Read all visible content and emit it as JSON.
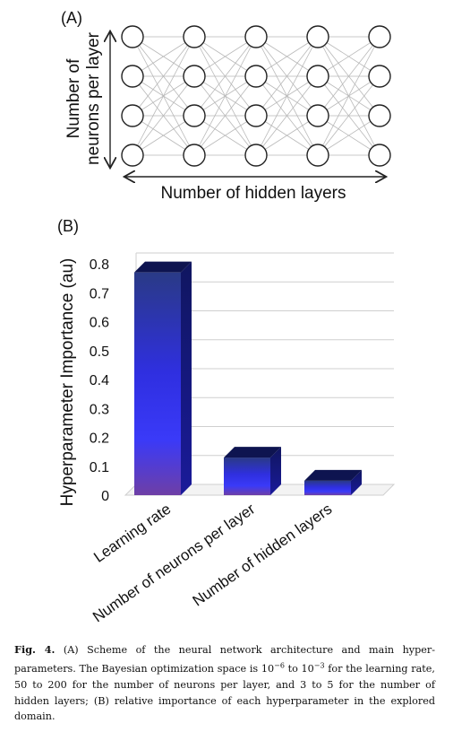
{
  "panel_a": {
    "label": "(A)",
    "y_text": [
      "Number of",
      "neurons per layer"
    ],
    "x_text": "Number of hidden layers",
    "layers": 5,
    "neurons_per_layer": 4
  },
  "panel_b": {
    "label": "(B)"
  },
  "chart_data": {
    "type": "bar",
    "categories": [
      "Learning rate",
      "Number of neurons per layer",
      "Number of hidden layers"
    ],
    "values": [
      0.77,
      0.13,
      0.05
    ],
    "ylabel": "Hyperparameter Importance (au)",
    "xlabel": "",
    "ylim": [
      0,
      0.8
    ],
    "yticks": [
      "0",
      "0.1",
      "0.2",
      "0.3",
      "0.4",
      "0.5",
      "0.6",
      "0.7",
      "0.8"
    ],
    "grid": true,
    "style": "3d",
    "colors": {
      "top": "#3e4aa8",
      "bottom": "#6b3fa6",
      "side": "#141a72",
      "mid": "#3434f0"
    }
  },
  "caption": {
    "fig_label": "Fig. 4.",
    "text": "(A) Scheme of the neural network architecture and main hyper-parameters. The Bayesian optimization space is 10^−6 to 10^−3 for the learning rate, 50 to 200 for the number of neurons per layer, and 3 to 5 for the number of hidden layers; (B) relative importance of each hyperparameter in the explored domain."
  }
}
